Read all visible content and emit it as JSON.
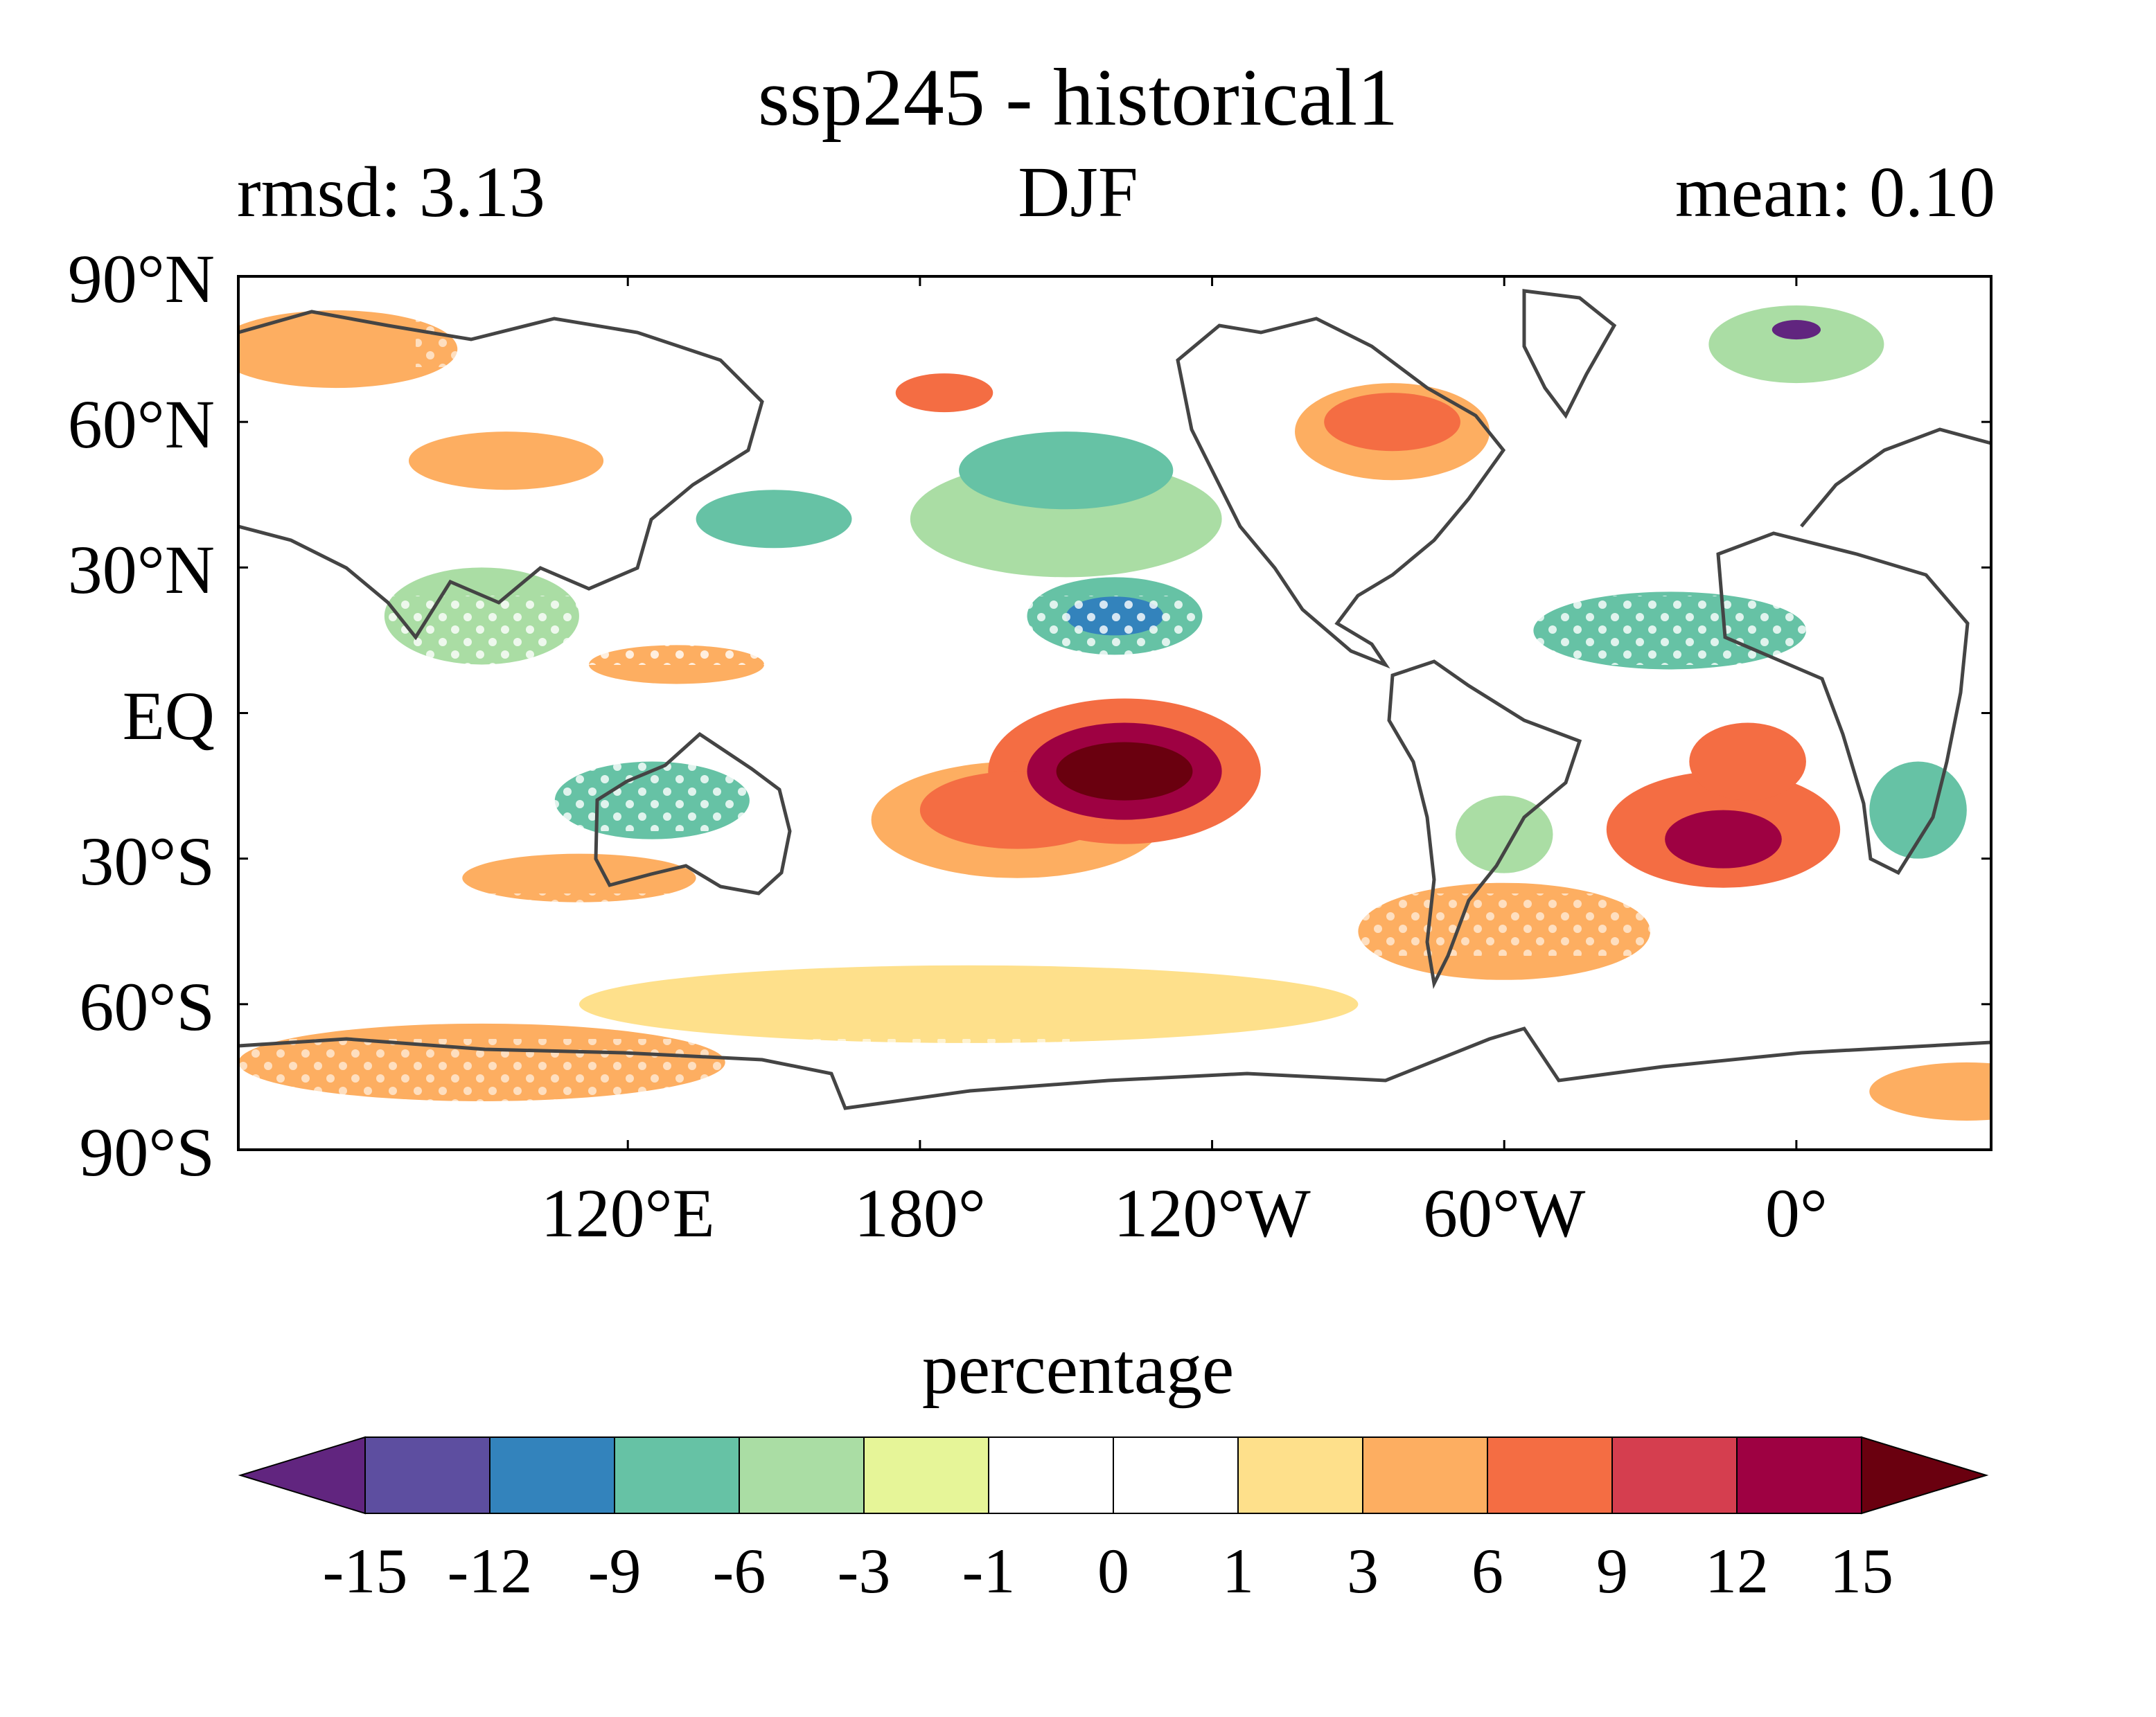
{
  "title": "ssp245 - historical1",
  "subtitle_left": "rmsd: 3.13",
  "subtitle_center": "DJF",
  "subtitle_right": "mean: 0.10",
  "map": {
    "lon_range": [
      40,
      400
    ],
    "lat_range": [
      -90,
      90
    ],
    "y_ticks": [
      {
        "lat": 90,
        "label": "90°N"
      },
      {
        "lat": 60,
        "label": "60°N"
      },
      {
        "lat": 30,
        "label": "30°N"
      },
      {
        "lat": 0,
        "label": "EQ"
      },
      {
        "lat": -30,
        "label": "30°S"
      },
      {
        "lat": -60,
        "label": "60°S"
      },
      {
        "lat": -90,
        "label": "90°S"
      }
    ],
    "x_ticks": [
      {
        "lon": 120,
        "label": "120°E"
      },
      {
        "lon": 180,
        "label": "180°"
      },
      {
        "lon": 240,
        "label": "120°W"
      },
      {
        "lon": 300,
        "label": "60°W"
      },
      {
        "lon": 360,
        "label": "0°"
      }
    ],
    "coastline_color": "#444444",
    "stipple_color": "#ffffff",
    "anomaly_blobs": [
      {
        "lon": 222,
        "lat": -12,
        "rlon": 14,
        "rlat": 6,
        "level": 15
      },
      {
        "lon": 222,
        "lat": -12,
        "rlon": 20,
        "rlat": 10,
        "level": 12
      },
      {
        "lon": 222,
        "lat": -12,
        "rlon": 28,
        "rlat": 15,
        "level": 6
      },
      {
        "lon": 345,
        "lat": -26,
        "rlon": 12,
        "rlat": 6,
        "level": 12
      },
      {
        "lon": 345,
        "lat": -24,
        "rlon": 24,
        "rlat": 12,
        "level": 6
      },
      {
        "lon": 350,
        "lat": -10,
        "rlon": 12,
        "rlat": 8,
        "level": 6
      },
      {
        "lon": 200,
        "lat": -20,
        "rlon": 20,
        "rlat": 8,
        "level": 6
      },
      {
        "lon": 200,
        "lat": -22,
        "rlon": 30,
        "rlat": 12,
        "level": 3
      },
      {
        "lon": 277,
        "lat": 60,
        "rlon": 14,
        "rlat": 6,
        "level": 6
      },
      {
        "lon": 277,
        "lat": 58,
        "rlon": 20,
        "rlat": 10,
        "level": 3
      },
      {
        "lon": 185,
        "lat": 66,
        "rlon": 10,
        "rlat": 4,
        "level": 6
      },
      {
        "lon": 110,
        "lat": -34,
        "rlon": 24,
        "rlat": 5,
        "level": 3
      },
      {
        "lon": 95,
        "lat": 52,
        "rlon": 20,
        "rlat": 6,
        "level": 3
      },
      {
        "lon": 130,
        "lat": 10,
        "rlon": 18,
        "rlat": 4,
        "level": 3
      },
      {
        "lon": 190,
        "lat": -60,
        "rlon": 80,
        "rlat": 8,
        "level": 1
      },
      {
        "lon": 90,
        "lat": -72,
        "rlon": 50,
        "rlat": 8,
        "level": 3
      },
      {
        "lon": 300,
        "lat": -45,
        "rlon": 30,
        "rlat": 10,
        "level": 3
      },
      {
        "lon": 60,
        "lat": 75,
        "rlon": 25,
        "rlat": 8,
        "level": 3
      },
      {
        "lon": 395,
        "lat": -78,
        "rlon": 20,
        "rlat": 6,
        "level": 3
      },
      {
        "lon": 210,
        "lat": 40,
        "rlon": 32,
        "rlat": 12,
        "level": -3
      },
      {
        "lon": 210,
        "lat": 50,
        "rlon": 22,
        "rlat": 8,
        "level": -6
      },
      {
        "lon": 220,
        "lat": 20,
        "rlon": 18,
        "rlat": 8,
        "level": -6
      },
      {
        "lon": 220,
        "lat": 20,
        "rlon": 10,
        "rlat": 4,
        "level": -9
      },
      {
        "lon": 150,
        "lat": 40,
        "rlon": 16,
        "rlat": 6,
        "level": -6
      },
      {
        "lon": 125,
        "lat": -18,
        "rlon": 20,
        "rlat": 8,
        "level": -6
      },
      {
        "lon": 385,
        "lat": -20,
        "rlon": 10,
        "rlat": 10,
        "level": -6
      },
      {
        "lon": 334,
        "lat": 17,
        "rlon": 28,
        "rlat": 8,
        "level": -6
      },
      {
        "lon": 360,
        "lat": 76,
        "rlon": 18,
        "rlat": 8,
        "level": -3
      },
      {
        "lon": 360,
        "lat": 79,
        "rlon": 5,
        "rlat": 2,
        "level": -15
      },
      {
        "lon": 300,
        "lat": -25,
        "rlon": 10,
        "rlat": 8,
        "level": -3
      },
      {
        "lon": 90,
        "lat": 20,
        "rlon": 20,
        "rlat": 10,
        "level": -3
      }
    ]
  },
  "colorbar": {
    "label": "percentage",
    "tick_labels": [
      "-15",
      "-12",
      "-9",
      "-6",
      "-3",
      "-1",
      "0",
      "1",
      "3",
      "6",
      "9",
      "12",
      "15"
    ],
    "colors": [
      "#61257f",
      "#5d4ea0",
      "#3383bc",
      "#66c2a5",
      "#aadda4",
      "#e6f598",
      "#ffffff",
      "#ffffff",
      "#fee08b",
      "#fdae61",
      "#f46d43",
      "#d53e4f",
      "#9e0142",
      "#6a000f"
    ],
    "extend": "both"
  }
}
